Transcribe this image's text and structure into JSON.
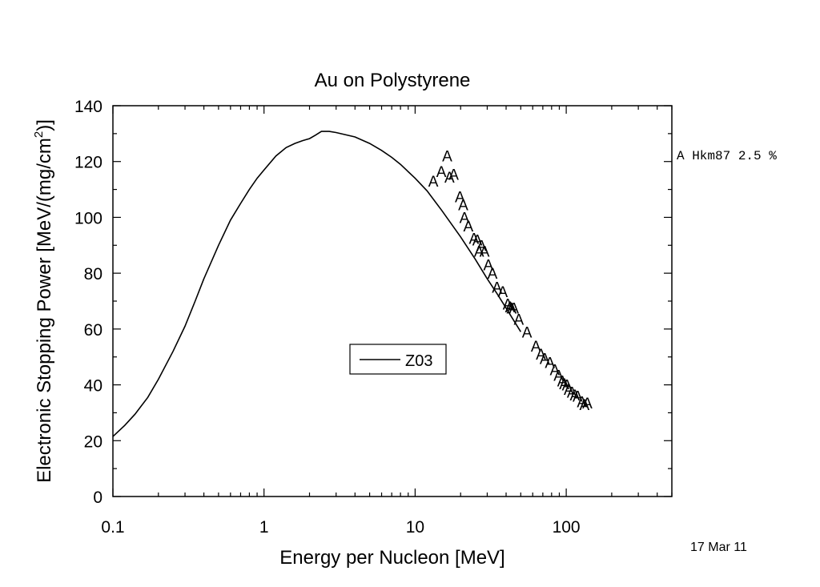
{
  "chart_data": {
    "type": "line",
    "title": "Au on Polystyrene",
    "xlabel": "Energy per Nucleon [MeV]",
    "ylabel_parts": {
      "base": "Electronic Stopping Power [MeV/(mg/cm",
      "sup": "2",
      "end": ")]"
    },
    "x_scale": "log",
    "xlim": [
      0.1,
      500
    ],
    "ylim": [
      0,
      140
    ],
    "x_ticks": [
      {
        "value": 0.1,
        "label": "0.1"
      },
      {
        "value": 1,
        "label": "1"
      },
      {
        "value": 10,
        "label": "10"
      },
      {
        "value": 100,
        "label": "100"
      }
    ],
    "y_ticks": [
      {
        "value": 0,
        "label": "0"
      },
      {
        "value": 20,
        "label": "20"
      },
      {
        "value": 40,
        "label": "40"
      },
      {
        "value": 60,
        "label": "60"
      },
      {
        "value": 80,
        "label": "80"
      },
      {
        "value": 100,
        "label": "100"
      },
      {
        "value": 120,
        "label": "120"
      },
      {
        "value": 140,
        "label": "140"
      }
    ],
    "grid": false,
    "legend_position": "center",
    "series": [
      {
        "name": "Z03",
        "kind": "line",
        "color": "#000000",
        "points": [
          [
            0.1,
            21.5
          ],
          [
            0.12,
            25.5
          ],
          [
            0.14,
            29.5
          ],
          [
            0.17,
            35.5
          ],
          [
            0.2,
            42
          ],
          [
            0.25,
            52
          ],
          [
            0.3,
            61
          ],
          [
            0.35,
            70
          ],
          [
            0.4,
            78
          ],
          [
            0.5,
            90
          ],
          [
            0.6,
            99
          ],
          [
            0.7,
            105
          ],
          [
            0.8,
            110
          ],
          [
            0.9,
            114
          ],
          [
            1.0,
            117
          ],
          [
            1.2,
            122
          ],
          [
            1.4,
            125
          ],
          [
            1.6,
            126.5
          ],
          [
            1.8,
            127.5
          ],
          [
            2.0,
            128.2
          ],
          [
            2.2,
            129.5
          ],
          [
            2.4,
            130.8
          ],
          [
            2.7,
            130.8
          ],
          [
            3.0,
            130.4
          ],
          [
            4.0,
            128.8
          ],
          [
            5.0,
            126.5
          ],
          [
            6.0,
            124
          ],
          [
            7.0,
            121.5
          ],
          [
            8.0,
            119
          ],
          [
            10,
            114
          ],
          [
            12,
            109.5
          ],
          [
            15,
            102.5
          ],
          [
            20,
            93
          ],
          [
            25,
            85
          ],
          [
            30,
            78
          ],
          [
            35,
            72.5
          ],
          [
            40,
            67.5
          ],
          [
            45,
            63
          ],
          [
            50,
            59
          ]
        ]
      },
      {
        "name": "Hkm87 2.5 %",
        "marker": "A",
        "kind": "scatter",
        "color": "#000000",
        "points": [
          [
            13.2,
            113
          ],
          [
            14.9,
            116.5
          ],
          [
            16.3,
            122
          ],
          [
            16.9,
            114.5
          ],
          [
            18.0,
            115.5
          ],
          [
            19.8,
            107.5
          ],
          [
            20.8,
            104.5
          ],
          [
            21.2,
            100
          ],
          [
            22.5,
            97
          ],
          [
            24.5,
            92.5
          ],
          [
            25.8,
            92
          ],
          [
            26.5,
            88
          ],
          [
            27.5,
            90
          ],
          [
            28.8,
            88
          ],
          [
            30.5,
            83
          ],
          [
            32.5,
            80
          ],
          [
            34.8,
            75
          ],
          [
            38.0,
            73.5
          ],
          [
            41.0,
            69
          ],
          [
            42.5,
            68
          ],
          [
            43.5,
            67.5
          ],
          [
            45.0,
            67.5
          ],
          [
            48.5,
            63.5
          ],
          [
            55.0,
            59
          ],
          [
            63.0,
            54
          ],
          [
            68.0,
            51
          ],
          [
            72.0,
            49.5
          ],
          [
            78.0,
            48
          ],
          [
            84.0,
            45.5
          ],
          [
            89.0,
            43.5
          ],
          [
            94.0,
            41.5
          ],
          [
            97.0,
            40.5
          ],
          [
            101.0,
            40
          ],
          [
            104.0,
            38.5
          ],
          [
            109.0,
            37.5
          ],
          [
            114.0,
            36.5
          ],
          [
            119.0,
            36
          ],
          [
            127.0,
            34
          ],
          [
            132.0,
            33
          ],
          [
            138.0,
            33.5
          ]
        ]
      }
    ],
    "legend_label": "Z03",
    "side_annotation": "A Hkm87 2.5 %",
    "date_stamp": "17 Mar 11"
  }
}
